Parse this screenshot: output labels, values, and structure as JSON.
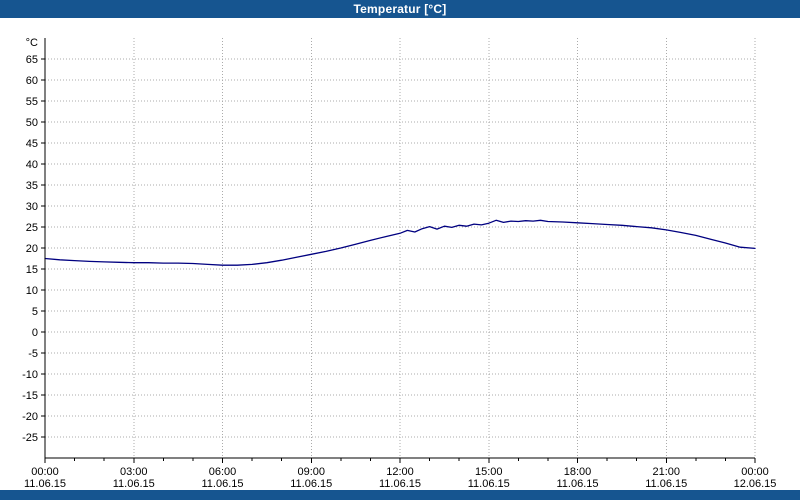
{
  "window": {
    "title": "Temperatur [°C]"
  },
  "colors": {
    "titlebar": "#165590",
    "titlebar_text": "#FFFFFF",
    "plot_bg": "#FFFFFF",
    "grid": "#ABABAB",
    "axis": "#000000",
    "line": "#000080"
  },
  "chart_data": {
    "type": "line",
    "title": "Temperatur [°C]",
    "y_unit": "°C",
    "ylim": [
      -30,
      70
    ],
    "yticks": [
      -25,
      -20,
      -15,
      -10,
      -5,
      0,
      5,
      10,
      15,
      20,
      25,
      30,
      35,
      40,
      45,
      50,
      55,
      60,
      65
    ],
    "xlim_hours": [
      0,
      24
    ],
    "xticks": [
      {
        "hour": 0,
        "time": "00:00",
        "date": "11.06.15"
      },
      {
        "hour": 3,
        "time": "03:00",
        "date": "11.06.15"
      },
      {
        "hour": 6,
        "time": "06:00",
        "date": "11.06.15"
      },
      {
        "hour": 9,
        "time": "09:00",
        "date": "11.06.15"
      },
      {
        "hour": 12,
        "time": "12:00",
        "date": "11.06.15"
      },
      {
        "hour": 15,
        "time": "15:00",
        "date": "11.06.15"
      },
      {
        "hour": 18,
        "time": "18:00",
        "date": "11.06.15"
      },
      {
        "hour": 21,
        "time": "21:00",
        "date": "11.06.15"
      },
      {
        "hour": 24,
        "time": "00:00",
        "date": "12.06.15"
      }
    ],
    "grid": "dotted",
    "legend": "none",
    "series": [
      {
        "name": "Temperatur",
        "color": "#000080",
        "x_hours": [
          0,
          0.5,
          1,
          1.5,
          2,
          2.5,
          3,
          3.5,
          4,
          4.5,
          5,
          5.5,
          6,
          6.5,
          7,
          7.5,
          8,
          8.5,
          9,
          9.5,
          10,
          10.5,
          11,
          11.5,
          12,
          12.25,
          12.5,
          12.75,
          13,
          13.25,
          13.5,
          13.75,
          14,
          14.25,
          14.5,
          14.75,
          15,
          15.25,
          15.5,
          15.75,
          16,
          16.25,
          16.5,
          16.75,
          17,
          17.5,
          18,
          18.5,
          19,
          19.5,
          20,
          20.5,
          21,
          21.5,
          22,
          22.5,
          23,
          23.5,
          24
        ],
        "values": [
          17.5,
          17.2,
          17.0,
          16.8,
          16.7,
          16.6,
          16.5,
          16.5,
          16.4,
          16.4,
          16.3,
          16.1,
          15.9,
          15.9,
          16.1,
          16.5,
          17.1,
          17.8,
          18.5,
          19.2,
          20.0,
          20.9,
          21.8,
          22.7,
          23.5,
          24.2,
          23.8,
          24.6,
          25.1,
          24.5,
          25.2,
          24.9,
          25.4,
          25.2,
          25.7,
          25.5,
          25.9,
          26.6,
          26.1,
          26.4,
          26.3,
          26.5,
          26.4,
          26.6,
          26.3,
          26.2,
          26.0,
          25.8,
          25.6,
          25.4,
          25.1,
          24.8,
          24.3,
          23.7,
          23.0,
          22.1,
          21.2,
          20.2,
          19.9
        ]
      }
    ]
  }
}
